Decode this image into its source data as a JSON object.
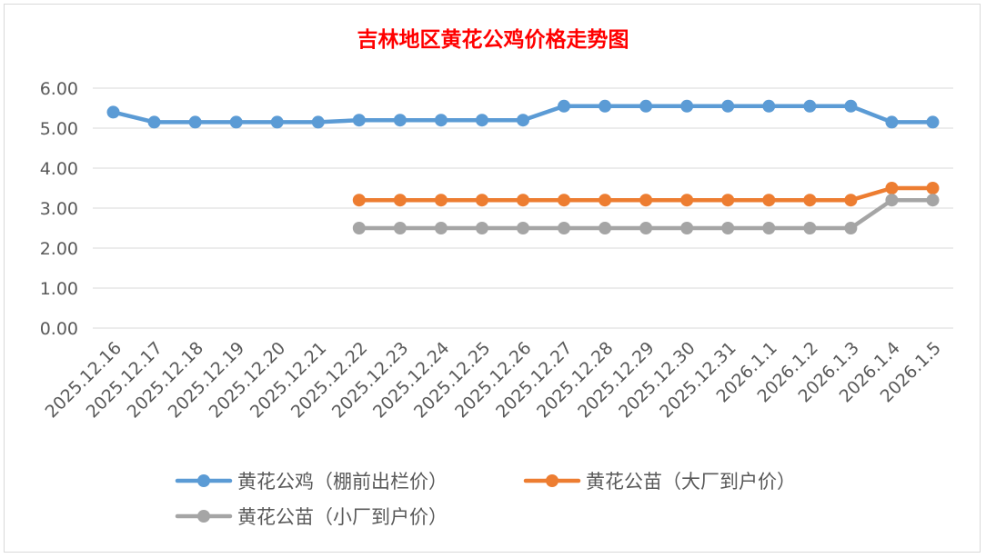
{
  "chart_data": {
    "type": "line",
    "title": "吉林地区黄花公鸡价格走势图",
    "xlabel": "",
    "ylabel": "",
    "ylim": [
      0,
      6
    ],
    "yticks": [
      "0.00",
      "1.00",
      "2.00",
      "3.00",
      "4.00",
      "5.00",
      "6.00"
    ],
    "grid": true,
    "legend_position": "bottom",
    "categories": [
      "2025.12.16",
      "2025.12.17",
      "2025.12.18",
      "2025.12.19",
      "2025.12.20",
      "2025.12.21",
      "2025.12.22",
      "2025.12.23",
      "2025.12.24",
      "2025.12.25",
      "2025.12.26",
      "2025.12.27",
      "2025.12.28",
      "2025.12.29",
      "2025.12.30",
      "2025.12.31",
      "2026.1.1",
      "2026.1.2",
      "2026.1.3",
      "2026.1.4",
      "2026.1.5"
    ],
    "series": [
      {
        "name": "黄花公鸡（棚前出栏价）",
        "color": "#5b9bd5",
        "values": [
          5.4,
          5.15,
          5.15,
          5.15,
          5.15,
          5.15,
          5.2,
          5.2,
          5.2,
          5.2,
          5.2,
          5.55,
          5.55,
          5.55,
          5.55,
          5.55,
          5.55,
          5.55,
          5.55,
          5.15,
          5.15
        ]
      },
      {
        "name": "黄花公苗（大厂到户价）",
        "color": "#ed7d31",
        "values": [
          null,
          null,
          null,
          null,
          null,
          null,
          3.2,
          3.2,
          3.2,
          3.2,
          3.2,
          3.2,
          3.2,
          3.2,
          3.2,
          3.2,
          3.2,
          3.2,
          3.2,
          3.5,
          3.5
        ]
      },
      {
        "name": "黄花公苗（小厂到户价）",
        "color": "#a5a5a5",
        "values": [
          null,
          null,
          null,
          null,
          null,
          null,
          2.5,
          2.5,
          2.5,
          2.5,
          2.5,
          2.5,
          2.5,
          2.5,
          2.5,
          2.5,
          2.5,
          2.5,
          2.5,
          3.2,
          3.2
        ]
      }
    ]
  }
}
